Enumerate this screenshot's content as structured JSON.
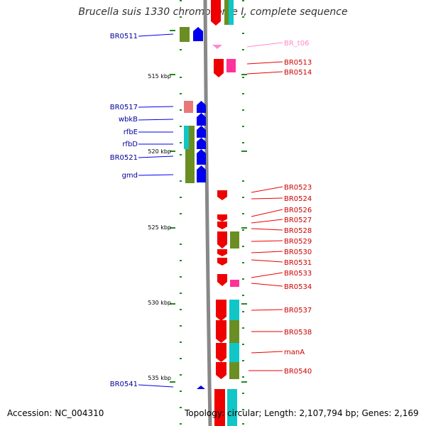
{
  "title": "Brucella suis 1330 chromosome I, complete sequence",
  "accession": "Accession: NC_004310",
  "topology": "Topology: circular; Length: 2,107,794 bp; Genes: 2,169",
  "scale_labels": [
    "515 kbp",
    "520 kbp",
    "525 kbp",
    "530 kbp",
    "535 kbp"
  ],
  "left_genes": [
    "BR0511",
    "BR0517",
    "wbkB",
    "rfbE",
    "rfbD",
    "BR0521",
    "gmd",
    "BR0541"
  ],
  "right_genes": [
    "BR_t06",
    "BR0513",
    "BR0514",
    "BR0523",
    "BR0524",
    "BR0526",
    "BR0527",
    "BR0528",
    "BR0529",
    "BR0530",
    "BR0531",
    "BR0533",
    "BR0534",
    "BR0537",
    "BR0538",
    "manA",
    "BR0540"
  ],
  "colors": {
    "forward": "#0000ee",
    "reverse": "#ee0000",
    "trna": "#ff88cc",
    "olive": "#6b8e23",
    "cyan": "#11c6c6",
    "salmon": "#e87878",
    "magenta": "#ff3399",
    "tick": "#228822",
    "backbone": "#888888"
  }
}
